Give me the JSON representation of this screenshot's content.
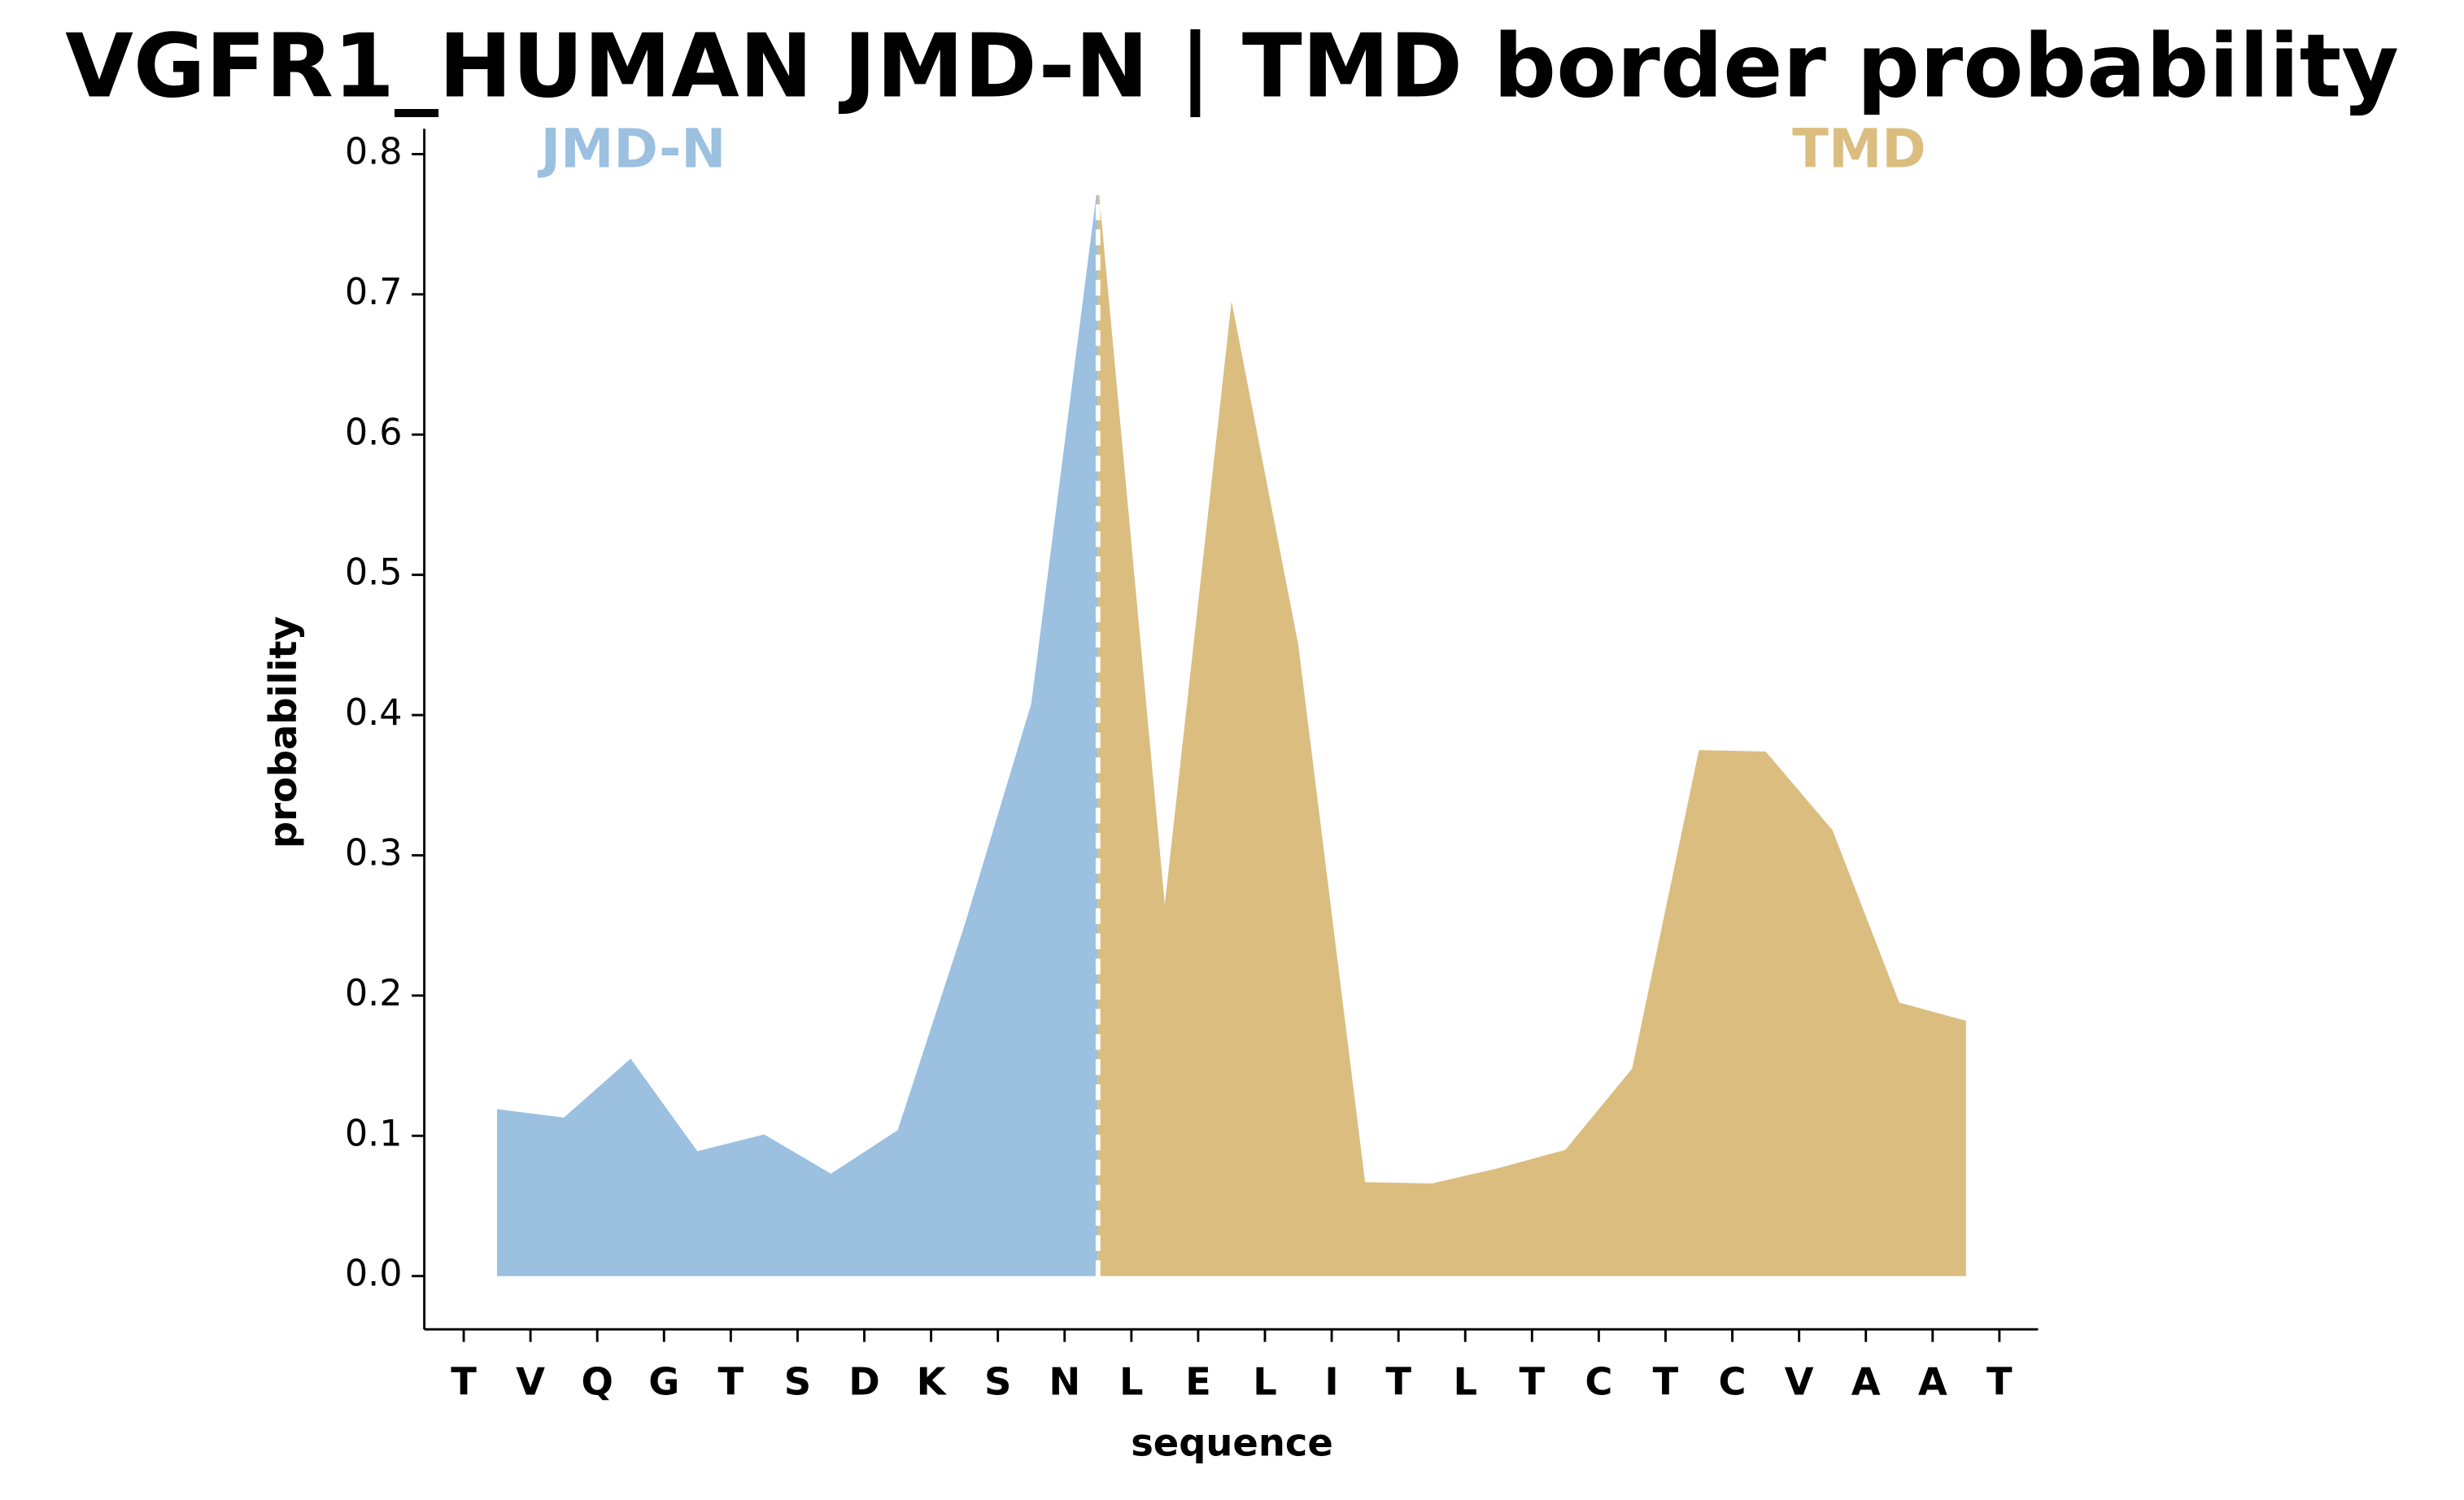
{
  "chart_data": {
    "type": "area",
    "title": "VGFR1_HUMAN JMD-N | TMD border probability",
    "x_label": "sequence",
    "y_label": "probability",
    "categories": [
      "T",
      "V",
      "Q",
      "G",
      "T",
      "S",
      "D",
      "K",
      "S",
      "N",
      "L",
      "E",
      "L",
      "I",
      "T",
      "L",
      "T",
      "C",
      "T",
      "C",
      "V",
      "A",
      "A",
      "T"
    ],
    "series": [
      {
        "name": "JMD-N",
        "color": "#9bc0e0",
        "x": [
          0.5,
          1.5,
          2.5,
          3.5,
          4.5,
          5.5,
          6.5,
          7.5,
          8.5,
          9.5
        ],
        "values": [
          0.119,
          0.113,
          0.155,
          0.089,
          0.101,
          0.073,
          0.104,
          0.25,
          0.408,
          0.78
        ]
      },
      {
        "name": "TMD",
        "color": "#dbbd80",
        "x": [
          9.5,
          10.5,
          11.5,
          12.5,
          13.5,
          14.5,
          15.5,
          16.5,
          17.5,
          18.5,
          19.5,
          20.5,
          21.5,
          22.5
        ],
        "values": [
          0.78,
          0.265,
          0.695,
          0.45,
          0.067,
          0.066,
          0.077,
          0.09,
          0.148,
          0.375,
          0.374,
          0.318,
          0.195,
          0.182
        ]
      }
    ],
    "border_x": 9.5,
    "xlim": [
      -0.59,
      23.58
    ],
    "ylim": [
      -0.038,
      0.818
    ],
    "yticks": [
      {
        "value": 0,
        "label": "0.0"
      },
      0.1,
      0.2,
      0.3,
      0.4,
      0.5,
      0.6,
      0.7,
      0.8
    ]
  }
}
